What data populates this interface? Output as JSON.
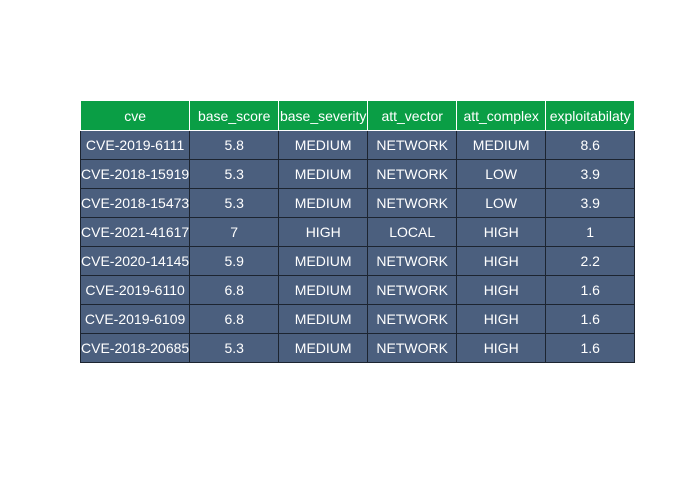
{
  "chart_data": {
    "type": "table",
    "columns": [
      "cve",
      "base_score",
      "base_severity",
      "att_vector",
      "att_complex",
      "exploitabilaty"
    ],
    "rows": [
      [
        "CVE-2019-6111",
        "5.8",
        "MEDIUM",
        "NETWORK",
        "MEDIUM",
        "8.6"
      ],
      [
        "CVE-2018-15919",
        "5.3",
        "MEDIUM",
        "NETWORK",
        "LOW",
        "3.9"
      ],
      [
        "CVE-2018-15473",
        "5.3",
        "MEDIUM",
        "NETWORK",
        "LOW",
        "3.9"
      ],
      [
        "CVE-2021-41617",
        "7",
        "HIGH",
        "LOCAL",
        "HIGH",
        "1"
      ],
      [
        "CVE-2020-14145",
        "5.9",
        "MEDIUM",
        "NETWORK",
        "HIGH",
        "2.2"
      ],
      [
        "CVE-2019-6110",
        "6.8",
        "MEDIUM",
        "NETWORK",
        "HIGH",
        "1.6"
      ],
      [
        "CVE-2019-6109",
        "6.8",
        "MEDIUM",
        "NETWORK",
        "HIGH",
        "1.6"
      ],
      [
        "CVE-2018-20685",
        "5.3",
        "MEDIUM",
        "NETWORK",
        "HIGH",
        "1.6"
      ]
    ],
    "header_color": "#0a9e45",
    "cell_color": "#4b5f7e",
    "text_color": "#ffffff"
  }
}
